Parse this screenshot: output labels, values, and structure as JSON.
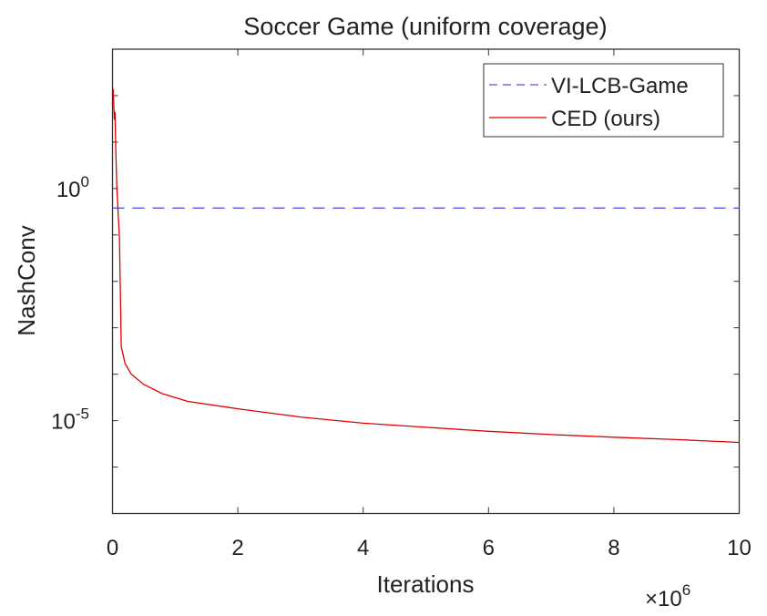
{
  "chart_data": {
    "type": "line",
    "title": "Soccer Game (uniform coverage)",
    "xlabel": "Iterations",
    "ylabel": "NashConv",
    "x_exponent_label": {
      "base": "×10",
      "exp": "6"
    },
    "xlim": [
      0,
      10
    ],
    "ylim": [
      1e-07,
      1000
    ],
    "yscale": "log",
    "grid": false,
    "legend_position": "top-right",
    "x_ticks": [
      "0",
      "2",
      "4",
      "6",
      "8",
      "10"
    ],
    "x_tick_values": [
      0,
      2,
      4,
      6,
      8,
      10
    ],
    "y_ticks": [
      {
        "base": "10",
        "exp": "0",
        "value": 1
      },
      {
        "base": "10",
        "exp": "-5",
        "value": 1e-05
      }
    ],
    "series": [
      {
        "name": "VI-LCB-Game",
        "color": "#5555dd",
        "style": "dashed",
        "x": [
          0,
          10
        ],
        "y": [
          0.38,
          0.38
        ]
      },
      {
        "name": "CED (ours)",
        "color": "#e00000",
        "style": "solid",
        "x": [
          0.01,
          0.03,
          0.04,
          0.05,
          0.06,
          0.07,
          0.09,
          0.11,
          0.13,
          0.14,
          0.2,
          0.3,
          0.5,
          0.8,
          1.2,
          2,
          3,
          4,
          5,
          6,
          7,
          8,
          9,
          10
        ],
        "y": [
          140,
          30,
          45,
          10,
          3,
          1,
          0.3,
          0.09,
          0.003,
          0.0004,
          0.00017,
          0.0001,
          6e-05,
          3.8e-05,
          2.6e-05,
          1.8e-05,
          1.2e-05,
          8.8e-06,
          7.2e-06,
          5.9e-06,
          5e-06,
          4.4e-06,
          3.9e-06,
          3.4e-06
        ]
      }
    ]
  }
}
